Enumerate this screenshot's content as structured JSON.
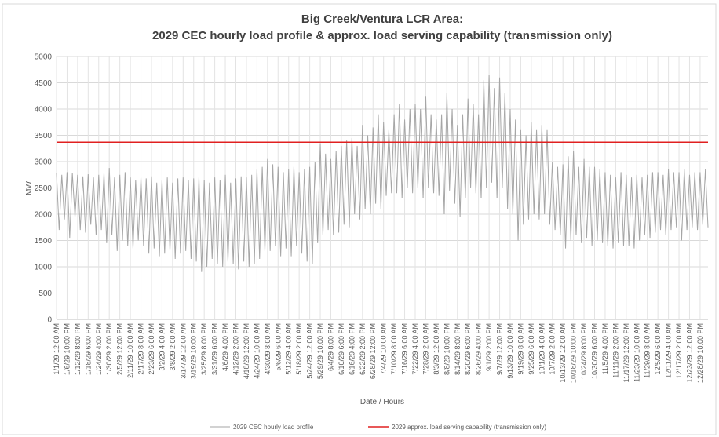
{
  "chart_data": {
    "type": "line",
    "title": [
      "Big Creek/Ventura LCR Area:",
      "2029 CEC hourly load profile & approx. load serving capability (transmission only)"
    ],
    "y_label": "MW",
    "x_label": "Date / Hours",
    "ylim": [
      0,
      5000
    ],
    "yticks": [
      0,
      500,
      1000,
      1500,
      2000,
      2500,
      3000,
      3500,
      4000,
      4500,
      5000
    ],
    "grid": true,
    "categories": [
      "1/1/29 12:00 AM",
      null,
      null,
      null,
      "1/6/29 10:00 PM",
      null,
      null,
      null,
      "1/12/29 8:00 PM",
      null,
      null,
      null,
      "1/18/29 6:00 PM",
      null,
      null,
      null,
      "1/24/29 4:00 PM",
      null,
      null,
      null,
      "1/30/29 2:00 PM",
      null,
      null,
      null,
      "2/5/29 12:00 PM",
      null,
      null,
      null,
      "2/11/29 10:00 AM",
      null,
      null,
      null,
      "2/17/29 8:00 AM",
      null,
      null,
      null,
      "2/23/29 6:00 AM",
      null,
      null,
      null,
      "3/2/29 4:00 AM",
      null,
      null,
      null,
      "3/8/29 2:00 AM",
      null,
      null,
      null,
      "3/14/29 12:00 AM",
      null,
      null,
      null,
      "3/19/29 10:00 PM",
      null,
      null,
      null,
      "3/25/29 8:00 PM",
      null,
      null,
      null,
      "3/31/29 6:00 PM",
      null,
      null,
      null,
      "4/6/29 4:00 PM",
      null,
      null,
      null,
      "4/12/29 2:00 PM",
      null,
      null,
      null,
      "4/18/29 12:00 PM",
      null,
      null,
      null,
      "4/24/29 10:00 AM",
      null,
      null,
      null,
      "4/30/29 8:00 AM",
      null,
      null,
      null,
      "5/6/29 6:00 AM",
      null,
      null,
      null,
      "5/12/29 4:00 AM",
      null,
      null,
      null,
      "5/18/29 2:00 AM",
      null,
      null,
      null,
      "5/24/29 12:00 AM",
      null,
      null,
      null,
      "5/29/29 10:00 PM",
      null,
      null,
      null,
      "6/4/29 8:00 PM",
      null,
      null,
      null,
      "6/10/29 6:00 PM",
      null,
      null,
      null,
      "6/16/29 4:00 PM",
      null,
      null,
      null,
      "6/22/29 2:00 PM",
      null,
      null,
      null,
      "6/28/29 12:00 PM",
      null,
      null,
      null,
      "7/4/29 10:00 AM",
      null,
      null,
      null,
      "7/10/29 8:00 AM",
      null,
      null,
      null,
      "7/16/29 6:00 AM",
      null,
      null,
      null,
      "7/22/29 4:00 AM",
      null,
      null,
      null,
      "7/28/29 2:00 AM",
      null,
      null,
      null,
      "8/3/29 12:00 AM",
      null,
      null,
      null,
      "8/8/29 10:00 PM",
      null,
      null,
      null,
      "8/14/29 8:00 PM",
      null,
      null,
      null,
      "8/20/29 6:00 PM",
      null,
      null,
      null,
      "8/26/29 4:00 PM",
      null,
      null,
      null,
      "9/1/29 2:00 PM",
      null,
      null,
      null,
      "9/7/29 12:00 PM",
      null,
      null,
      null,
      "9/13/29 10:00 AM",
      null,
      null,
      null,
      "9/19/29 8:00 AM",
      null,
      null,
      null,
      "9/25/29 6:00 AM",
      null,
      null,
      null,
      "10/1/29 4:00 AM",
      null,
      null,
      null,
      "10/7/29 2:00 AM",
      null,
      null,
      null,
      "10/13/29 12:00 AM",
      null,
      null,
      null,
      "10/18/29 10:00 PM",
      null,
      null,
      null,
      "10/24/29 8:00 PM",
      null,
      null,
      null,
      "10/30/29 6:00 PM",
      null,
      null,
      null,
      "11/5/29 4:00 PM",
      null,
      null,
      null,
      "11/11/29 2:00 PM",
      null,
      null,
      null,
      "11/17/29 12:00 PM",
      null,
      null,
      null,
      "11/23/29 10:00 AM",
      null,
      null,
      null,
      "11/29/29 8:00 AM",
      null,
      null,
      null,
      "12/5/29 6:00 AM",
      null,
      null,
      null,
      "12/11/29 4:00 AM",
      null,
      null,
      null,
      "12/17/29 2:00 AM",
      null,
      null,
      null,
      "12/23/29 12:00 AM",
      null,
      null,
      null,
      "12/28/29 10:00 PM",
      null,
      null,
      null
    ],
    "series": [
      {
        "name": "2029 CEC hourly load profile",
        "color": "#a6a6a6",
        "values": [
          2780,
          1700,
          2750,
          1900,
          2800,
          1550,
          2780,
          1950,
          2750,
          1700,
          2720,
          1650,
          2760,
          1800,
          2700,
          1600,
          2750,
          1700,
          2780,
          1450,
          2880,
          1600,
          2700,
          1300,
          2750,
          1500,
          2800,
          1400,
          2700,
          1350,
          2650,
          1500,
          2700,
          1400,
          2680,
          1250,
          2720,
          1350,
          2600,
          1200,
          2650,
          1250,
          2700,
          1300,
          2600,
          1150,
          2680,
          1250,
          2700,
          1300,
          2650,
          1150,
          2680,
          1100,
          2700,
          900,
          2650,
          1000,
          2600,
          1150,
          2700,
          1050,
          2650,
          1000,
          2750,
          1100,
          2600,
          1050,
          2680,
          950,
          2720,
          1100,
          2700,
          1000,
          2750,
          1050,
          2850,
          1150,
          2900,
          1300,
          3050,
          1300,
          2950,
          1400,
          2900,
          1200,
          2800,
          1350,
          2850,
          1200,
          2900,
          1400,
          2800,
          1250,
          2850,
          1100,
          2900,
          1050,
          3000,
          1450,
          3350,
          1600,
          3150,
          1700,
          3050,
          1600,
          3200,
          1650,
          3300,
          1800,
          3400,
          1750,
          3450,
          2000,
          3300,
          1900,
          3700,
          2100,
          3500,
          2000,
          3650,
          2200,
          3900,
          2100,
          3750,
          2350,
          3600,
          2400,
          3900,
          2400,
          4100,
          2300,
          3800,
          2500,
          4000,
          2400,
          4100,
          2500,
          4000,
          2300,
          4250,
          2500,
          3900,
          2400,
          3800,
          2350,
          3900,
          2000,
          4300,
          2450,
          4000,
          2200,
          3700,
          1950,
          3900,
          2300,
          4200,
          2500,
          4100,
          2400,
          3900,
          2300,
          4550,
          2500,
          4650,
          2600,
          4400,
          2300,
          4600,
          2500,
          4300,
          2100,
          4000,
          2000,
          3800,
          1500,
          3600,
          1800,
          3500,
          1900,
          3750,
          2000,
          3600,
          1900,
          3700,
          2000,
          3600,
          1800,
          3000,
          1700,
          2900,
          1600,
          2950,
          1350,
          3100,
          1500,
          3200,
          1600,
          2900,
          1450,
          3050,
          1550,
          2900,
          1400,
          2900,
          1500,
          2850,
          1450,
          2800,
          1400,
          2750,
          1350,
          2700,
          1450,
          2800,
          1400,
          2750,
          1400,
          2700,
          1350,
          2750,
          1500,
          2700,
          1600,
          2750,
          1550,
          2800,
          1650,
          2800,
          1700,
          2750,
          1600,
          2850,
          1700,
          2800,
          1750,
          2800,
          1500,
          2850,
          1700,
          2750,
          1750,
          2800,
          1700,
          2800,
          1800,
          2850,
          1750
        ]
      }
    ],
    "reference_lines": [
      {
        "name": "2029 approx. load serving  capability (transmission only)",
        "color": "#e02020",
        "value": 3370
      }
    ]
  }
}
